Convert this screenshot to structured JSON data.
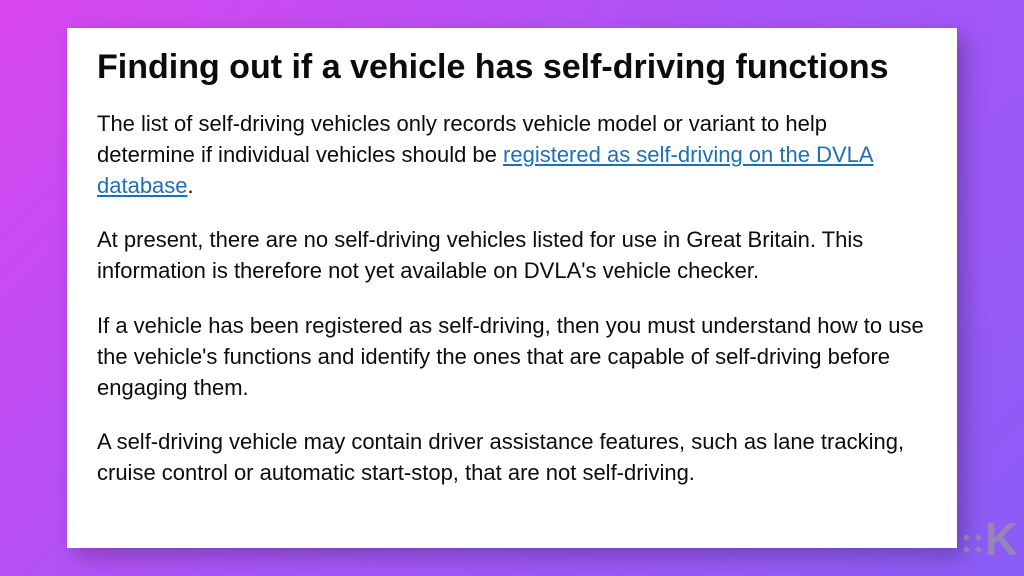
{
  "article": {
    "heading": "Finding out if a vehicle has self-driving functions",
    "p1_before": "The list of self-driving vehicles only records vehicle model or variant to help determine if individual vehicles should be ",
    "p1_link": "registered as self-driving on the DVLA database",
    "p1_after": ".",
    "p2": "At present, there are no self-driving vehicles listed for use in Great Britain. This information is therefore not yet available on DVLA's vehicle checker.",
    "p3": "If a vehicle has been registered as self-driving, then you must understand how to use the vehicle's functions and identify the ones that are capable of self-driving before engaging them.",
    "p4": "A self-driving vehicle may contain driver assistance features, such as lane tracking, cruise control or automatic start-stop, that are not self-driving."
  },
  "watermark": {
    "letter": "K"
  },
  "colors": {
    "background_gradient_start": "#d946ef",
    "background_gradient_mid": "#a855f7",
    "background_gradient_end": "#8b5cf6",
    "card_bg": "#ffffff",
    "text": "#0b0c0c",
    "link": "#1d70b8",
    "watermark": "rgba(150,150,160,0.7)"
  }
}
